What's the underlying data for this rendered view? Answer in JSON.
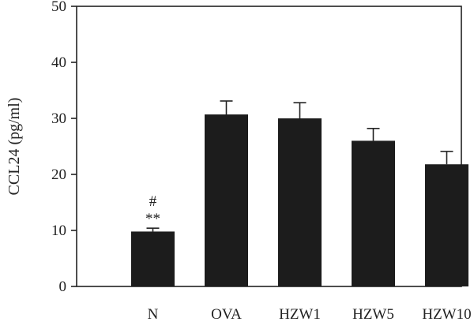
{
  "chart_data": {
    "type": "bar",
    "title": "",
    "xlabel": "",
    "ylabel": "CCL24 (pg/ml)",
    "ylim": [
      0,
      50
    ],
    "yticks": [
      "0",
      "10",
      "20",
      "30",
      "40",
      "50"
    ],
    "grid": false,
    "categories": [
      "N",
      "OVA",
      "HZW1",
      "HZW5",
      "HZW10"
    ],
    "values": [
      9.8,
      30.7,
      30.0,
      26.0,
      21.8
    ],
    "errors": [
      0.6,
      2.4,
      2.8,
      2.2,
      2.3
    ],
    "annotations": [
      {
        "category": "N",
        "lines": [
          "#",
          "**"
        ]
      }
    ],
    "bar_color": "#1c1c1c"
  }
}
